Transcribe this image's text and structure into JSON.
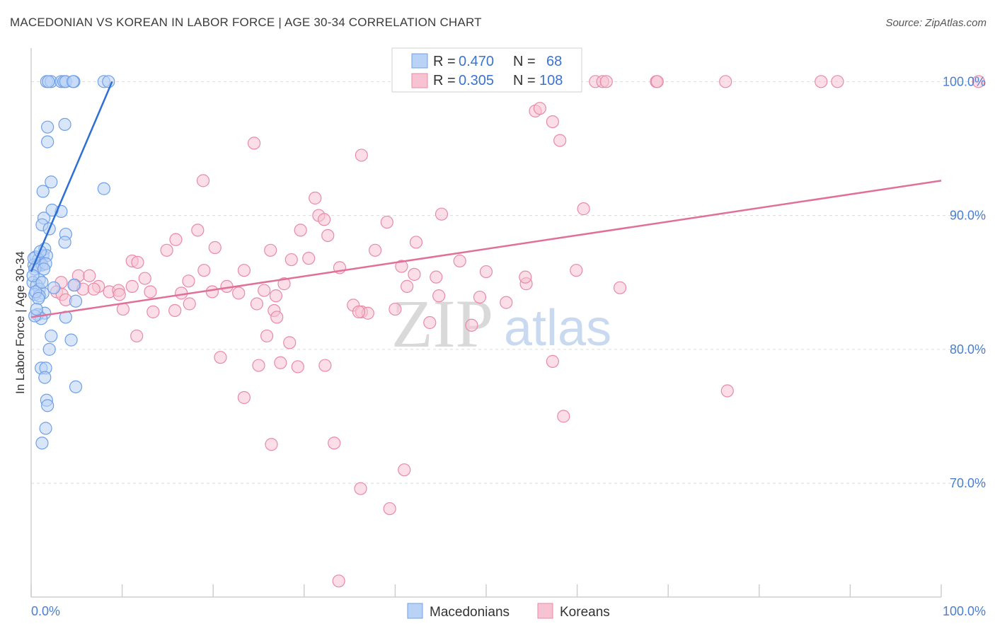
{
  "title": "MACEDONIAN VS KOREAN IN LABOR FORCE | AGE 30-34 CORRELATION CHART",
  "source": "Source: ZipAtlas.com",
  "watermark": {
    "zip": "ZIP",
    "atlas": "atlas"
  },
  "colors": {
    "blue": "#6fa0e8",
    "blue_fill": "#b9d2f5",
    "blue_line": "#2d6fd4",
    "pink": "#e88aa8",
    "pink_fill": "#f7c3d3",
    "pink_line": "#e0709a"
  },
  "legend": {
    "rows": [
      {
        "r_label": "R =",
        "r_value": "0.470",
        "n_label": "N =",
        "n_value": "68"
      },
      {
        "r_label": "R =",
        "r_value": "0.305",
        "n_label": "N =",
        "n_value": "108"
      }
    ]
  },
  "bottom_legend": [
    "Macedonians",
    "Koreans"
  ],
  "chart_data": {
    "type": "scatter",
    "title": "MACEDONIAN VS KOREAN IN LABOR FORCE | AGE 30-34 CORRELATION CHART",
    "xlabel": "",
    "ylabel": "In Labor Force | Age 30-34",
    "xlim": [
      0,
      100
    ],
    "ylim": [
      61.5,
      102.5
    ],
    "x_tick_labels": [
      "0.0%",
      "100.0%"
    ],
    "y_ticks": [
      70,
      80,
      90,
      100
    ],
    "y_tick_labels": [
      "70.0%",
      "80.0%",
      "90.0%",
      "100.0%"
    ],
    "grid": true,
    "legend_position": "top-center",
    "series": [
      {
        "name": "Macedonians",
        "trend": {
          "x": [
            0.0,
            8.9
          ],
          "y": [
            85.8,
            100.0
          ]
        },
        "points": [
          [
            1.7,
            100
          ],
          [
            2.2,
            100
          ],
          [
            3.3,
            100
          ],
          [
            3.6,
            100
          ],
          [
            3.8,
            100
          ],
          [
            4.7,
            100
          ],
          [
            8.0,
            100
          ],
          [
            8.5,
            100
          ],
          [
            4.6,
            100
          ],
          [
            1.9,
            100
          ],
          [
            1.8,
            96.6
          ],
          [
            3.7,
            96.8
          ],
          [
            1.8,
            95.5
          ],
          [
            2.2,
            92.5
          ],
          [
            1.3,
            91.8
          ],
          [
            8.0,
            92.0
          ],
          [
            3.3,
            90.3
          ],
          [
            2.3,
            90.4
          ],
          [
            1.4,
            89.8
          ],
          [
            1.2,
            89.3
          ],
          [
            2.0,
            89.0
          ],
          [
            3.8,
            88.6
          ],
          [
            3.7,
            88.0
          ],
          [
            1.5,
            87.5
          ],
          [
            1.3,
            87.0
          ],
          [
            1.7,
            87.0
          ],
          [
            0.5,
            86.9
          ],
          [
            0.8,
            86.7
          ],
          [
            1.0,
            86.5
          ],
          [
            0.3,
            86.3
          ],
          [
            0.6,
            86.2
          ],
          [
            1.2,
            86.3
          ],
          [
            1.6,
            86.4
          ],
          [
            0.4,
            86.0
          ],
          [
            0.9,
            85.2
          ],
          [
            0.2,
            85.0
          ],
          [
            0.6,
            84.8
          ],
          [
            4.7,
            84.8
          ],
          [
            0.9,
            84.5
          ],
          [
            1.3,
            84.2
          ],
          [
            0.4,
            84.1
          ],
          [
            0.9,
            84.0
          ],
          [
            4.9,
            83.6
          ],
          [
            1.5,
            82.7
          ],
          [
            0.7,
            82.6
          ],
          [
            3.8,
            82.4
          ],
          [
            1.1,
            82.3
          ],
          [
            2.2,
            81.0
          ],
          [
            4.4,
            80.7
          ],
          [
            2.0,
            80.0
          ],
          [
            1.1,
            78.6
          ],
          [
            1.6,
            78.6
          ],
          [
            1.5,
            77.9
          ],
          [
            4.9,
            77.2
          ],
          [
            1.7,
            76.2
          ],
          [
            1.8,
            75.8
          ],
          [
            1.6,
            74.1
          ],
          [
            1.2,
            73.0
          ],
          [
            0.2,
            85.5
          ],
          [
            0.3,
            86.8
          ],
          [
            1.0,
            87.3
          ],
          [
            0.5,
            84.3
          ],
          [
            1.2,
            85.0
          ],
          [
            0.8,
            83.8
          ],
          [
            2.5,
            84.6
          ],
          [
            0.4,
            82.5
          ],
          [
            1.4,
            86.0
          ],
          [
            0.6,
            83.0
          ]
        ]
      },
      {
        "name": "Koreans",
        "trend": {
          "x": [
            0.0,
            100.0
          ],
          "y": [
            82.4,
            92.6
          ]
        },
        "points": [
          [
            40.5,
            100
          ],
          [
            62.0,
            100
          ],
          [
            62.8,
            100
          ],
          [
            63.2,
            100
          ],
          [
            68.7,
            100
          ],
          [
            68.8,
            100
          ],
          [
            76.3,
            100
          ],
          [
            86.8,
            100
          ],
          [
            88.6,
            100
          ],
          [
            104.1,
            100
          ],
          [
            55.4,
            97.8
          ],
          [
            55.9,
            98.0
          ],
          [
            57.3,
            97.0
          ],
          [
            58.1,
            95.6
          ],
          [
            24.5,
            95.4
          ],
          [
            36.3,
            94.5
          ],
          [
            18.9,
            92.6
          ],
          [
            31.2,
            91.3
          ],
          [
            31.6,
            90.0
          ],
          [
            32.2,
            89.7
          ],
          [
            45.1,
            90.1
          ],
          [
            60.7,
            90.5
          ],
          [
            39.1,
            89.5
          ],
          [
            29.6,
            88.9
          ],
          [
            18.3,
            88.9
          ],
          [
            32.6,
            88.5
          ],
          [
            15.9,
            88.2
          ],
          [
            20.2,
            87.6
          ],
          [
            26.3,
            87.4
          ],
          [
            42.3,
            88.0
          ],
          [
            37.8,
            87.4
          ],
          [
            14.9,
            87.4
          ],
          [
            47.1,
            86.6
          ],
          [
            11.1,
            86.6
          ],
          [
            11.7,
            86.5
          ],
          [
            23.4,
            85.9
          ],
          [
            19.0,
            85.9
          ],
          [
            33.9,
            86.1
          ],
          [
            30.5,
            86.8
          ],
          [
            59.9,
            85.9
          ],
          [
            40.7,
            86.2
          ],
          [
            42.1,
            85.6
          ],
          [
            5.2,
            85.5
          ],
          [
            6.4,
            85.5
          ],
          [
            44.5,
            85.4
          ],
          [
            12.5,
            85.3
          ],
          [
            17.3,
            85.1
          ],
          [
            3.3,
            85.0
          ],
          [
            4.8,
            84.8
          ],
          [
            7.4,
            84.7
          ],
          [
            11.1,
            84.7
          ],
          [
            21.5,
            84.7
          ],
          [
            25.6,
            84.4
          ],
          [
            8.6,
            84.3
          ],
          [
            9.6,
            84.4
          ],
          [
            9.7,
            84.1
          ],
          [
            13.1,
            84.3
          ],
          [
            16.5,
            84.2
          ],
          [
            19.9,
            84.3
          ],
          [
            22.8,
            84.2
          ],
          [
            26.9,
            84.0
          ],
          [
            2.8,
            84.3
          ],
          [
            3.4,
            84.1
          ],
          [
            5.7,
            84.5
          ],
          [
            54.4,
            84.9
          ],
          [
            64.7,
            84.6
          ],
          [
            54.3,
            85.4
          ],
          [
            17.4,
            83.4
          ],
          [
            24.8,
            83.4
          ],
          [
            35.4,
            83.3
          ],
          [
            52.2,
            83.5
          ],
          [
            10.1,
            83.0
          ],
          [
            15.8,
            82.9
          ],
          [
            13.4,
            82.8
          ],
          [
            26.7,
            82.9
          ],
          [
            36.3,
            82.8
          ],
          [
            37.0,
            82.7
          ],
          [
            27.0,
            82.4
          ],
          [
            36.0,
            82.8
          ],
          [
            40.0,
            83.0
          ],
          [
            43.8,
            82.0
          ],
          [
            48.4,
            81.8
          ],
          [
            3.8,
            83.7
          ],
          [
            11.6,
            81.0
          ],
          [
            25.9,
            81.0
          ],
          [
            28.4,
            80.5
          ],
          [
            20.8,
            79.4
          ],
          [
            27.4,
            79.0
          ],
          [
            32.3,
            78.8
          ],
          [
            57.3,
            79.1
          ],
          [
            25.0,
            78.8
          ],
          [
            29.3,
            78.7
          ],
          [
            76.5,
            76.9
          ],
          [
            23.4,
            76.4
          ],
          [
            58.5,
            75.0
          ],
          [
            26.4,
            72.9
          ],
          [
            33.3,
            73.0
          ],
          [
            41.0,
            71.0
          ],
          [
            36.2,
            69.6
          ],
          [
            39.4,
            68.1
          ],
          [
            33.8,
            62.7
          ],
          [
            6.9,
            84.5
          ],
          [
            27.8,
            84.9
          ],
          [
            50.0,
            85.8
          ],
          [
            28.6,
            86.7
          ],
          [
            41.3,
            84.7
          ],
          [
            44.8,
            84.0
          ],
          [
            49.3,
            83.9
          ]
        ]
      }
    ]
  }
}
